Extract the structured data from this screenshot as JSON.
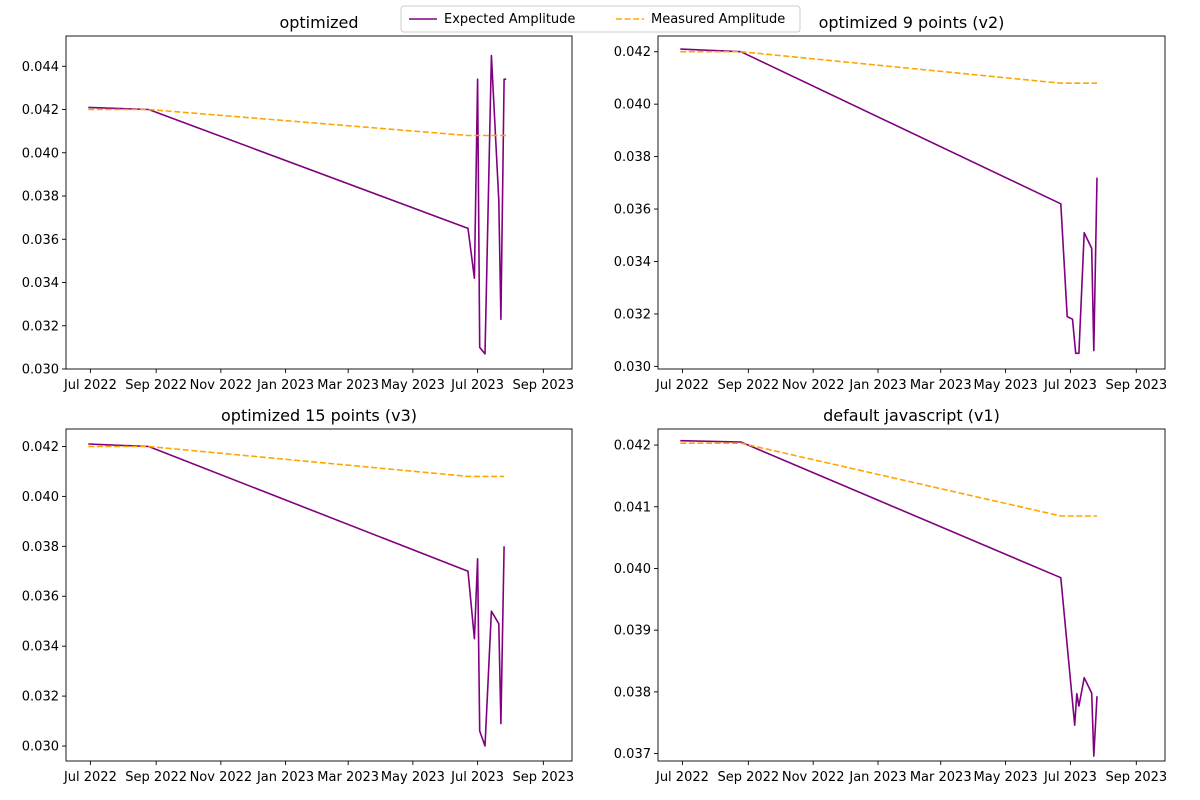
{
  "legend": {
    "entries": [
      {
        "label": "Expected Amplitude",
        "color": "#800080",
        "style": "solid"
      },
      {
        "label": "Measured Amplitude",
        "color": "#FFA500",
        "style": "dashed"
      }
    ],
    "placement": "top-center"
  },
  "chart_data": [
    {
      "type": "line",
      "title": "optimized",
      "xlabel": "",
      "ylabel": "",
      "x_axis": {
        "type": "date",
        "range": [
          "2022-06-08",
          "2023-09-28"
        ],
        "ticks": [
          {
            "date": "2022-07-01",
            "label": "Jul 2022"
          },
          {
            "date": "2022-09-01",
            "label": "Sep 2022"
          },
          {
            "date": "2022-11-01",
            "label": "Nov 2022"
          },
          {
            "date": "2023-01-01",
            "label": "Jan 2023"
          },
          {
            "date": "2023-03-01",
            "label": "Mar 2023"
          },
          {
            "date": "2023-05-01",
            "label": "May 2023"
          },
          {
            "date": "2023-07-01",
            "label": "Jul 2023"
          },
          {
            "date": "2023-09-01",
            "label": "Sep 2023"
          }
        ]
      },
      "y_axis": {
        "range": [
          0.03,
          0.0454
        ],
        "ticks": [
          "0.030",
          "0.032",
          "0.034",
          "0.036",
          "0.038",
          "0.040",
          "0.042",
          "0.044"
        ]
      },
      "grid": false,
      "series": [
        {
          "name": "Expected Amplitude",
          "x": [
            "2022-06-29",
            "2022-08-25",
            "2023-06-22",
            "2023-06-28",
            "2023-07-01",
            "2023-07-03",
            "2023-07-08",
            "2023-07-14",
            "2023-07-21",
            "2023-07-23",
            "2023-07-26",
            "2023-07-28"
          ],
          "y": [
            0.0421,
            0.042,
            0.0365,
            0.0342,
            0.0434,
            0.031,
            0.0307,
            0.0445,
            0.0378,
            0.0323,
            0.0434,
            0.0434
          ]
        },
        {
          "name": "Measured Amplitude",
          "x": [
            "2022-06-29",
            "2022-08-25",
            "2023-06-22",
            "2023-07-28"
          ],
          "y": [
            0.042,
            0.042,
            0.0408,
            0.0408
          ]
        }
      ]
    },
    {
      "type": "line",
      "title": "optimized 9 points (v2)",
      "xlabel": "",
      "ylabel": "",
      "x_axis": {
        "type": "date",
        "range": [
          "2022-06-08",
          "2023-09-28"
        ],
        "ticks": [
          {
            "date": "2022-07-01",
            "label": "Jul 2022"
          },
          {
            "date": "2022-09-01",
            "label": "Sep 2022"
          },
          {
            "date": "2022-11-01",
            "label": "Nov 2022"
          },
          {
            "date": "2023-01-01",
            "label": "Jan 2023"
          },
          {
            "date": "2023-03-01",
            "label": "Mar 2023"
          },
          {
            "date": "2023-05-01",
            "label": "May 2023"
          },
          {
            "date": "2023-07-01",
            "label": "Jul 2023"
          },
          {
            "date": "2023-09-01",
            "label": "Sep 2023"
          }
        ]
      },
      "y_axis": {
        "range": [
          0.0299,
          0.0426
        ],
        "ticks": [
          "0.030",
          "0.032",
          "0.034",
          "0.036",
          "0.038",
          "0.040",
          "0.042"
        ]
      },
      "grid": false,
      "series": [
        {
          "name": "Expected Amplitude",
          "x": [
            "2022-06-29",
            "2022-08-25",
            "2023-06-22",
            "2023-06-28",
            "2023-07-03",
            "2023-07-06",
            "2023-07-09",
            "2023-07-14",
            "2023-07-21",
            "2023-07-23",
            "2023-07-26"
          ],
          "y": [
            0.0421,
            0.042,
            0.0362,
            0.0319,
            0.0318,
            0.0305,
            0.0305,
            0.0351,
            0.0345,
            0.0306,
            0.0372
          ]
        },
        {
          "name": "Measured Amplitude",
          "x": [
            "2022-06-29",
            "2022-08-25",
            "2023-06-22",
            "2023-07-26"
          ],
          "y": [
            0.042,
            0.042,
            0.0408,
            0.0408
          ]
        }
      ]
    },
    {
      "type": "line",
      "title": "optimized 15 points (v3)",
      "xlabel": "",
      "ylabel": "",
      "x_axis": {
        "type": "date",
        "range": [
          "2022-06-08",
          "2023-09-28"
        ],
        "ticks": [
          {
            "date": "2022-07-01",
            "label": "Jul 2022"
          },
          {
            "date": "2022-09-01",
            "label": "Sep 2022"
          },
          {
            "date": "2022-11-01",
            "label": "Nov 2022"
          },
          {
            "date": "2023-01-01",
            "label": "Jan 2023"
          },
          {
            "date": "2023-03-01",
            "label": "Mar 2023"
          },
          {
            "date": "2023-05-01",
            "label": "May 2023"
          },
          {
            "date": "2023-07-01",
            "label": "Jul 2023"
          },
          {
            "date": "2023-09-01",
            "label": "Sep 2023"
          }
        ]
      },
      "y_axis": {
        "range": [
          0.0294,
          0.0427
        ],
        "ticks": [
          "0.030",
          "0.032",
          "0.034",
          "0.036",
          "0.038",
          "0.040",
          "0.042"
        ]
      },
      "grid": false,
      "series": [
        {
          "name": "Expected Amplitude",
          "x": [
            "2022-06-29",
            "2022-08-25",
            "2023-06-22",
            "2023-06-28",
            "2023-07-01",
            "2023-07-03",
            "2023-07-08",
            "2023-07-14",
            "2023-07-21",
            "2023-07-23",
            "2023-07-26"
          ],
          "y": [
            0.0421,
            0.042,
            0.037,
            0.0343,
            0.0375,
            0.0306,
            0.03,
            0.0354,
            0.0349,
            0.0309,
            0.038
          ]
        },
        {
          "name": "Measured Amplitude",
          "x": [
            "2022-06-29",
            "2022-08-25",
            "2023-06-22",
            "2023-07-26"
          ],
          "y": [
            0.042,
            0.042,
            0.0408,
            0.0408
          ]
        }
      ]
    },
    {
      "type": "line",
      "title": "default javascript (v1)",
      "xlabel": "",
      "ylabel": "",
      "x_axis": {
        "type": "date",
        "range": [
          "2022-06-08",
          "2023-09-28"
        ],
        "ticks": [
          {
            "date": "2022-07-01",
            "label": "Jul 2022"
          },
          {
            "date": "2022-09-01",
            "label": "Sep 2022"
          },
          {
            "date": "2022-11-01",
            "label": "Nov 2022"
          },
          {
            "date": "2023-01-01",
            "label": "Jan 2023"
          },
          {
            "date": "2023-03-01",
            "label": "Mar 2023"
          },
          {
            "date": "2023-05-01",
            "label": "May 2023"
          },
          {
            "date": "2023-07-01",
            "label": "Jul 2023"
          },
          {
            "date": "2023-09-01",
            "label": "Sep 2023"
          }
        ]
      },
      "y_axis": {
        "range": [
          0.03688,
          0.04226
        ],
        "ticks": [
          "0.037",
          "0.038",
          "0.039",
          "0.040",
          "0.041",
          "0.042"
        ]
      },
      "grid": false,
      "series": [
        {
          "name": "Expected Amplitude",
          "x": [
            "2022-06-29",
            "2022-08-25",
            "2023-06-22",
            "2023-07-05",
            "2023-07-07",
            "2023-07-09",
            "2023-07-14",
            "2023-07-21",
            "2023-07-23",
            "2023-07-26"
          ],
          "y": [
            0.04207,
            0.04205,
            0.03985,
            0.03746,
            0.03797,
            0.03777,
            0.03823,
            0.03798,
            0.03696,
            0.03793
          ]
        },
        {
          "name": "Measured Amplitude",
          "x": [
            "2022-06-29",
            "2022-08-25",
            "2023-06-22",
            "2023-07-26"
          ],
          "y": [
            0.04203,
            0.04203,
            0.04085,
            0.04085
          ]
        }
      ]
    }
  ]
}
